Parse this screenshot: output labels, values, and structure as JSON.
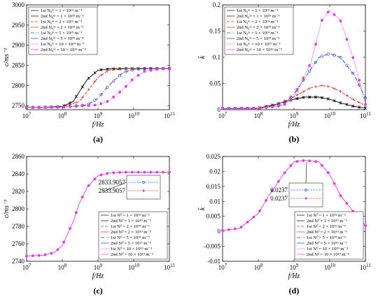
{
  "chart_data": [
    {
      "type": "line",
      "panel": "(a)",
      "xlabel": "f/Hz",
      "ylabel": "c/ms⁻¹",
      "xscale": "log",
      "xlim": [
        10000000.0,
        100000000000.0
      ],
      "ylim": [
        2740,
        3000
      ],
      "xticks": [
        "10^7",
        "10^8",
        "10^9",
        "10^10",
        "10^11"
      ],
      "yticks": [
        2750,
        2800,
        2850,
        2900,
        2950,
        3000
      ],
      "legend_position": "top-left",
      "legend": [
        "1st N₀ᵐ = 1 × 10¹⁹ m⁻³",
        "2nd N₀ᵐ = 1 × 10¹⁹ m⁻³",
        "1st N₀ᵐ = 2 × 10¹⁹ m⁻³",
        "2nd N₀ᵐ = 2 × 10¹⁹ m⁻³",
        "1st N₀ᵐ = 5 × 10¹⁹ m⁻³",
        "2nd N₀ᵐ = 5 × 10¹⁹ m⁻³",
        "1st N₀ᵐ = 10 × 10¹⁹ m⁻³",
        "2nd N₀ᵐ = 10 × 10¹⁹ m⁻³"
      ],
      "series": [
        {
          "color": "#000000",
          "x": [
            10000000.0,
            30000000.0,
            100000000.0,
            200000000.0,
            500000000.0,
            1000000000.0,
            2000000000.0,
            5000000000.0,
            10000000000.0,
            100000000000.0
          ],
          "y": [
            2746,
            2746,
            2748,
            2760,
            2815,
            2838,
            2841,
            2842,
            2842,
            2842
          ]
        },
        {
          "color": "#d62728",
          "x": [
            10000000.0,
            30000000.0,
            100000000.0,
            300000000.0,
            1000000000.0,
            2000000000.0,
            5000000000.0,
            10000000000.0,
            100000000000.0
          ],
          "y": [
            2746,
            2746,
            2747,
            2760,
            2820,
            2838,
            2841,
            2842,
            2842
          ]
        },
        {
          "color": "#1f3fbf",
          "x": [
            10000000.0,
            100000000.0,
            500000000.0,
            1000000000.0,
            2000000000.0,
            5000000000.0,
            10000000000.0,
            20000000000.0,
            100000000000.0
          ],
          "y": [
            2746,
            2746,
            2752,
            2768,
            2800,
            2832,
            2840,
            2842,
            2842
          ]
        },
        {
          "color": "#e040e0",
          "x": [
            10000000.0,
            100000000.0,
            1000000000.0,
            2000000000.0,
            5000000000.0,
            10000000000.0,
            20000000000.0,
            50000000000.0,
            100000000000.0
          ],
          "y": [
            2746,
            2746,
            2752,
            2762,
            2790,
            2818,
            2835,
            2841,
            2842
          ]
        }
      ]
    },
    {
      "type": "line",
      "panel": "(b)",
      "xlabel": "f/Hz",
      "ylabel": "k̄",
      "xscale": "log",
      "xlim": [
        10000000.0,
        100000000000.0
      ],
      "ylim": [
        0,
        0.2
      ],
      "xticks": [
        "10^7",
        "10^8",
        "10^9",
        "10^10",
        "10^11"
      ],
      "yticks": [
        0,
        0.05,
        0.1,
        0.15,
        0.2
      ],
      "legend_position": "top-left",
      "legend": [
        "1st N₀ᵐ = 1 × 10¹⁹ m⁻³",
        "2nd N₀ᵐ = 1 × 10¹⁹ m⁻³",
        "1st N₀ᵐ = 2 × 10¹⁹ m⁻³",
        "2nd N₀ᵐ = 2 × 10¹⁹ m⁻³",
        "1st N₀ᵐ = 5 × 10¹⁹ m⁻³",
        "2nd N₀ᵐ = 5 × 10¹⁹ m⁻³",
        "1st N₀ᵐ = 10 × 10¹⁹ m⁻³",
        "2nd N₀ᵐ = 10 × 10¹⁹ m⁻³"
      ],
      "series": [
        {
          "color": "#000000",
          "x": [
            10000000.0,
            100000000.0,
            300000000.0,
            1000000000.0,
            2000000000.0,
            5000000000.0,
            10000000000.0,
            20000000000.0,
            50000000000.0,
            100000000000.0
          ],
          "y": [
            0.002,
            0.003,
            0.01,
            0.02,
            0.024,
            0.024,
            0.02,
            0.013,
            0.006,
            0.003
          ]
        },
        {
          "color": "#d62728",
          "x": [
            10000000.0,
            100000000.0,
            300000000.0,
            1000000000.0,
            3000000000.0,
            6000000000.0,
            10000000000.0,
            20000000000.0,
            50000000000.0,
            100000000000.0
          ],
          "y": [
            0.002,
            0.003,
            0.008,
            0.025,
            0.042,
            0.046,
            0.044,
            0.035,
            0.018,
            0.008
          ]
        },
        {
          "color": "#1f3fbf",
          "x": [
            10000000.0,
            100000000.0,
            500000000.0,
            1000000000.0,
            2000000000.0,
            5000000000.0,
            10000000000.0,
            20000000000.0,
            50000000000.0,
            100000000000.0
          ],
          "y": [
            0.002,
            0.002,
            0.01,
            0.03,
            0.06,
            0.1,
            0.107,
            0.1,
            0.065,
            0.022
          ]
        },
        {
          "color": "#e040e0",
          "x": [
            10000000.0,
            100000000.0,
            500000000.0,
            1000000000.0,
            3000000000.0,
            6000000000.0,
            10000000000.0,
            20000000000.0,
            50000000000.0,
            100000000000.0
          ],
          "y": [
            0.002,
            0.002,
            0.008,
            0.025,
            0.09,
            0.17,
            0.19,
            0.17,
            0.09,
            0.01
          ]
        }
      ]
    },
    {
      "type": "line",
      "panel": "(c)",
      "xlabel": "f/Hz",
      "ylabel": "c/ms⁻¹",
      "xscale": "log",
      "xlim": [
        10000000.0,
        100000000000.0
      ],
      "ylim": [
        2740,
        2860
      ],
      "xticks": [
        "10^7",
        "10^8",
        "10^9",
        "10^10",
        "10^11"
      ],
      "yticks": [
        2740,
        2760,
        2780,
        2800,
        2820,
        2840,
        2860
      ],
      "legend_position": "bottom-right",
      "annotations": [
        "2833.9057",
        "2833.9057"
      ],
      "legend": [
        "1st Nᵃ̂ = 1 × 10¹⁹ m⁻³",
        "2nd Nᵃ̂ = 1 × 10¹⁹ m⁻³",
        "1st Nᵃ̂ = 2 × 10¹⁹ m⁻³",
        "2nd Nᵃ̂ = 2 × 10¹⁹ m⁻³",
        "1st Nᵃ̂ = 5 × 10¹⁹ m⁻³",
        "2nd Nᵃ̂ = 5 × 10¹⁹ m⁻³",
        "1st Nᵃ̂ = 10 × 10¹⁹ m⁻³",
        "2nd Nᵃ̂ = 10 × 10¹⁹ m⁻³"
      ],
      "series": [
        {
          "color": "#e040e0",
          "x": [
            10000000.0,
            30000000.0,
            60000000.0,
            100000000.0,
            200000000.0,
            300000000.0,
            500000000.0,
            1000000000.0,
            2000000000.0,
            5000000000.0,
            10000000000.0,
            100000000000.0
          ],
          "y": [
            2746,
            2747,
            2750,
            2758,
            2785,
            2806,
            2825,
            2838,
            2841,
            2842,
            2842,
            2842
          ]
        }
      ]
    },
    {
      "type": "line",
      "panel": "(d)",
      "xlabel": "f/Hz",
      "ylabel": "k̄",
      "xscale": "log",
      "xlim": [
        10000000.0,
        100000000000.0
      ],
      "ylim": [
        -0.01,
        0.025
      ],
      "xticks": [
        "10^7",
        "10^8",
        "10^9",
        "10^10",
        "10^11"
      ],
      "yticks": [
        -0.01,
        -0.005,
        0,
        0.005,
        0.01,
        0.015,
        0.02,
        0.025
      ],
      "legend_position": "bottom-right",
      "annotations": [
        "0.0237",
        "0.0237"
      ],
      "legend": [
        "1st Nᵃ̂ = 1 × 10¹⁹ m⁻³",
        "2nd Nᵃ̂ = 1 × 10¹⁹ m⁻³",
        "1st Nᵃ̂ = 2 × 10¹⁹ m⁻³",
        "2nd Nᵃ̂ = 2 × 10¹⁹ m⁻³",
        "1st Nᵃ̂ = 5 × 10¹⁹ m⁻³",
        "2nd Nᵃ̂ = 5 × 10¹⁹ m⁻³",
        "1st Nᵃ̂ = 10 × 10¹⁹ m⁻³",
        "2nd Nᵃ̂ = 10 × 10¹⁹ m⁻³"
      ],
      "series": [
        {
          "color": "#e040e0",
          "x": [
            10000000.0,
            30000000.0,
            100000000.0,
            200000000.0,
            500000000.0,
            1000000000.0,
            2000000000.0,
            5000000000.0,
            10000000000.0,
            20000000000.0,
            50000000000.0,
            100000000000.0
          ],
          "y": [
            0.0003,
            0.001,
            0.006,
            0.012,
            0.019,
            0.0232,
            0.0237,
            0.0232,
            0.019,
            0.012,
            0.006,
            0.002
          ]
        }
      ]
    }
  ]
}
